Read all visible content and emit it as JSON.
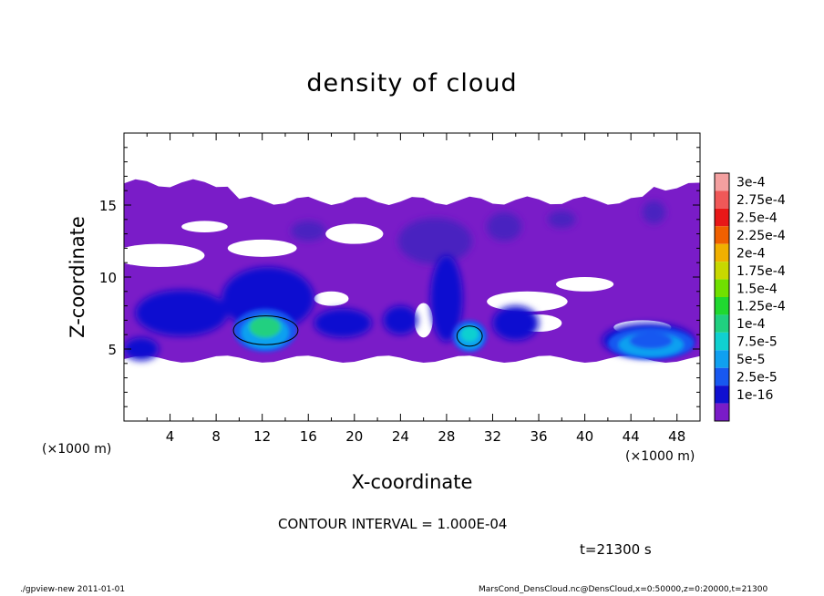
{
  "chart_data": {
    "type": "heatmap",
    "title": "density of cloud",
    "xlabel": "X-coordinate",
    "ylabel": "Z-coordinate",
    "x_unit": "(×1000 m)",
    "y_unit": "(×1000 m)",
    "xlim": [
      0,
      50
    ],
    "ylim": [
      0,
      20
    ],
    "x_ticks": [
      4,
      8,
      12,
      16,
      20,
      24,
      28,
      32,
      36,
      40,
      44,
      48
    ],
    "y_ticks": [
      5,
      10,
      15
    ],
    "grid": false,
    "colorbar": {
      "placement": "right",
      "levels": [
        "3e-4",
        "2.75e-4",
        "2.5e-4",
        "2.25e-4",
        "2e-4",
        "1.75e-4",
        "1.5e-4",
        "1.25e-4",
        "1e-4",
        "7.5e-5",
        "5e-5",
        "2.5e-5",
        "1e-16"
      ],
      "colors": [
        "#f4a0a0",
        "#f05858",
        "#e81818",
        "#f06000",
        "#f0b000",
        "#c8d800",
        "#70e000",
        "#20d830",
        "#20d080",
        "#10d0d0",
        "#10a0f0",
        "#1858f0",
        "#1010d0",
        "#7a1cc8"
      ]
    },
    "regions": [
      {
        "name": "upper-cloud-layer",
        "x": [
          0,
          50
        ],
        "z": [
          4.2,
          16.5
        ],
        "level": "1e-16"
      },
      {
        "name": "core-near-x12",
        "x": [
          9.5,
          15
        ],
        "z": [
          4.8,
          7.8
        ],
        "level": "1.25e-4"
      },
      {
        "name": "core-near-x30",
        "x": [
          28.5,
          31.5
        ],
        "z": [
          4.8,
          7.0
        ],
        "level": "1e-4"
      },
      {
        "name": "core-near-x43",
        "x": [
          42,
          49.5
        ],
        "z": [
          4.3,
          6.5
        ],
        "level": "5e-5"
      }
    ]
  },
  "annotations": {
    "contour_interval": "CONTOUR INTERVAL = 1.000E-04",
    "time": "t=21300 s"
  },
  "footer": {
    "left": "./gpview-new   2011-01-01",
    "right": "MarsCond_DensCloud.nc@DensCloud,x=0:50000,z=0:20000,t=21300"
  }
}
